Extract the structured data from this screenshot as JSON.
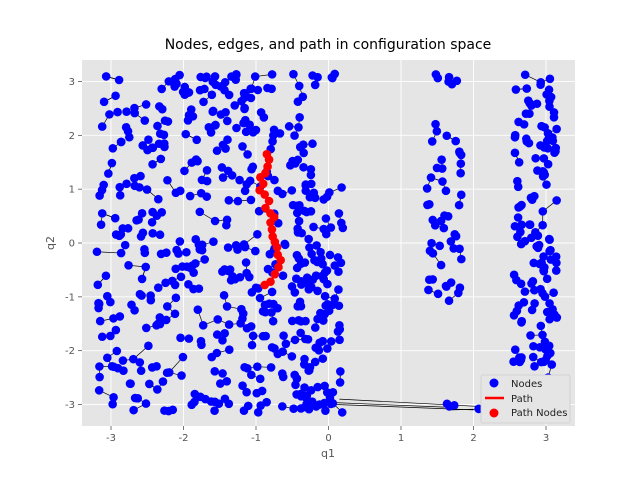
{
  "chart_data": {
    "type": "scatter",
    "title": "Nodes, edges, and path in configuration space",
    "xlabel": "q1",
    "ylabel": "q2",
    "xlim": [
      -3.4,
      3.4
    ],
    "ylim": [
      -3.4,
      3.4
    ],
    "x_ticks": [
      -3,
      -2,
      -1,
      0,
      1,
      2,
      3
    ],
    "y_ticks": [
      -3,
      -2,
      -1,
      0,
      1,
      2,
      3
    ],
    "grid": true,
    "legend": {
      "position": "bottom-right",
      "entries": [
        {
          "label": "Nodes",
          "kind": "marker",
          "color": "#0000ff"
        },
        {
          "label": "Path",
          "kind": "line",
          "color": "#ff0000"
        },
        {
          "label": "Path Nodes",
          "kind": "marker",
          "color": "#ff0000"
        }
      ]
    },
    "colors": {
      "background": "#e5e5e5",
      "grid": "#ffffff",
      "nodes": "#0000ff",
      "edges": "#000000",
      "path": "#ff0000"
    },
    "series": [
      {
        "name": "Path Nodes",
        "points": [
          [
            -0.85,
            1.65
          ],
          [
            -0.82,
            1.55
          ],
          [
            -0.84,
            1.42
          ],
          [
            -0.87,
            1.3
          ],
          [
            -0.94,
            1.22
          ],
          [
            -0.9,
            1.1
          ],
          [
            -0.95,
            0.98
          ],
          [
            -0.88,
            0.9
          ],
          [
            -0.82,
            0.78
          ],
          [
            -0.87,
            0.65
          ],
          [
            -0.8,
            0.55
          ],
          [
            -0.75,
            0.48
          ],
          [
            -0.8,
            0.38
          ],
          [
            -0.78,
            0.25
          ],
          [
            -0.77,
            0.12
          ],
          [
            -0.74,
            0.02
          ],
          [
            -0.71,
            -0.08
          ],
          [
            -0.7,
            -0.22
          ],
          [
            -0.66,
            -0.32
          ],
          [
            -0.69,
            -0.45
          ],
          [
            -0.74,
            -0.58
          ],
          [
            -0.8,
            -0.72
          ],
          [
            -0.88,
            -0.78
          ]
        ]
      }
    ],
    "node_clusters": [
      {
        "x": [
          -3.2,
          -0.15
        ],
        "y": [
          -3.15,
          3.15
        ],
        "count": 430
      },
      {
        "x": [
          -0.45,
          0.2
        ],
        "y": [
          -3.0,
          1.2
        ],
        "count": 90
      },
      {
        "x": [
          -2.1,
          -0.7
        ],
        "y": [
          2.75,
          3.15
        ],
        "count": 18
      },
      {
        "x": [
          -0.35,
          0.1
        ],
        "y": [
          3.0,
          3.15
        ],
        "count": 5
      },
      {
        "x": [
          1.35,
          1.85
        ],
        "y": [
          -1.1,
          2.35
        ],
        "count": 48
      },
      {
        "x": [
          1.45,
          1.85
        ],
        "y": [
          2.95,
          3.15
        ],
        "count": 6
      },
      {
        "x": [
          2.55,
          3.15
        ],
        "y": [
          -2.3,
          3.15
        ],
        "count": 140
      },
      {
        "x": [
          -0.5,
          0.2
        ],
        "y": [
          -3.15,
          -2.7
        ],
        "count": 14
      },
      {
        "x": [
          1.5,
          2.1
        ],
        "y": [
          -3.15,
          -2.95
        ],
        "count": 5
      },
      {
        "x": [
          2.95,
          3.15
        ],
        "y": [
          -3.15,
          -2.4
        ],
        "count": 5
      }
    ]
  }
}
